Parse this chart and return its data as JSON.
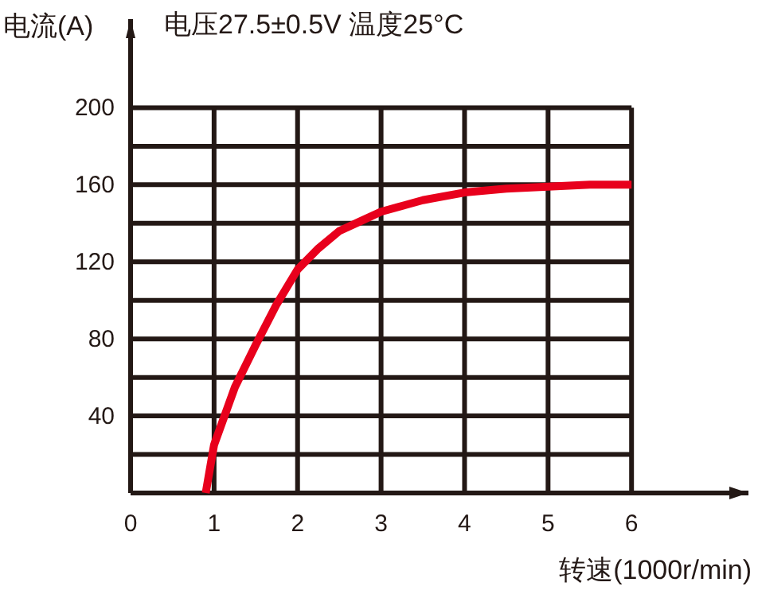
{
  "chart_data": {
    "type": "line",
    "title": "电压27.5±0.5V 温度25°C",
    "xlabel": "转速(1000r/min)",
    "ylabel": "电流(A)",
    "x": [
      0.9,
      1,
      1.25,
      1.5,
      1.75,
      2,
      2.25,
      2.5,
      2.75,
      3,
      3.5,
      4,
      4.5,
      5,
      5.5,
      6
    ],
    "values": [
      0,
      25,
      55,
      77,
      98,
      116,
      127,
      136,
      141,
      146,
      152,
      156,
      158,
      159,
      160,
      160
    ],
    "color": "#e8001c",
    "xlim": [
      0,
      7.4
    ],
    "ylim": [
      0,
      246
    ],
    "xticks": [
      0,
      1,
      2,
      3,
      4,
      5,
      6
    ],
    "yticks": [
      {
        "value": 20,
        "label": null
      },
      40,
      {
        "value": 60,
        "label": null
      },
      80,
      {
        "value": 100,
        "label": null
      },
      120,
      {
        "value": 140,
        "label": null
      },
      160,
      {
        "value": 180,
        "label": null
      },
      200
    ],
    "grid": true
  }
}
